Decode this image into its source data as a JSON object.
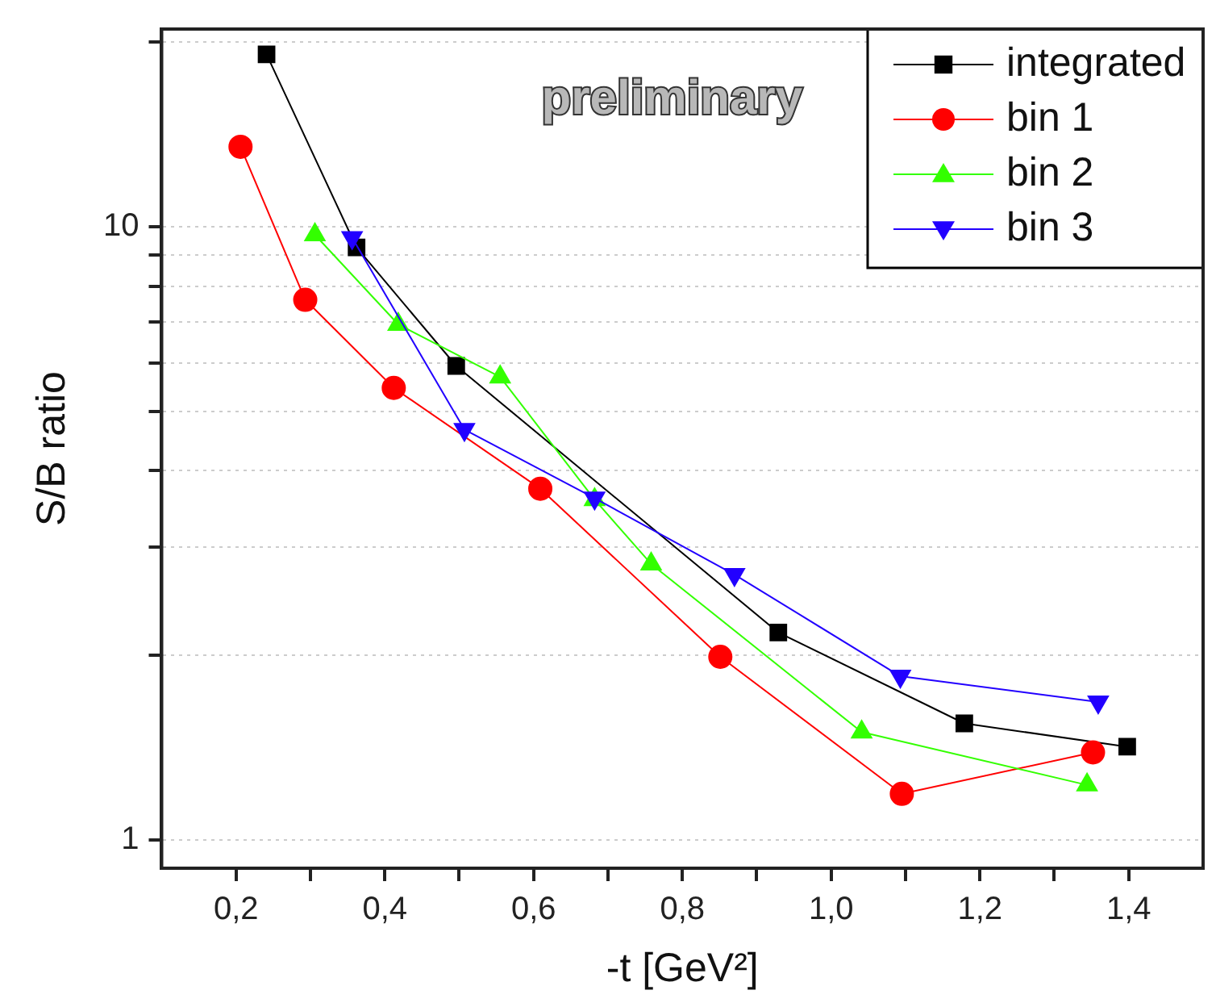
{
  "chart_data": {
    "type": "line",
    "xlabel": "-t [GeV²]",
    "ylabel": "S/B ratio",
    "annotations": [
      "preliminary"
    ],
    "log": "y",
    "grid": "y",
    "legend": "top right",
    "line_style": "solid",
    "xlim": [
      0.1,
      1.5
    ],
    "ylim": [
      0.9,
      21
    ],
    "xticks": [
      {
        "value": 0.2,
        "label": "0,2"
      },
      {
        "value": 0.3,
        "label": null
      },
      {
        "value": 0.4,
        "label": "0,4"
      },
      {
        "value": 0.5,
        "label": null
      },
      {
        "value": 0.6,
        "label": "0,6"
      },
      {
        "value": 0.7,
        "label": null
      },
      {
        "value": 0.8,
        "label": "0,8"
      },
      {
        "value": 0.9,
        "label": null
      },
      {
        "value": 1.0,
        "label": "1,0"
      },
      {
        "value": 1.1,
        "label": null
      },
      {
        "value": 1.2,
        "label": "1,2"
      },
      {
        "value": 1.3,
        "label": null
      },
      {
        "value": 1.4,
        "label": "1,4"
      }
    ],
    "yticks": [
      1,
      {
        "value": 2,
        "label": null
      },
      {
        "value": 3,
        "label": null
      },
      {
        "value": 4,
        "label": null
      },
      {
        "value": 5,
        "label": null
      },
      {
        "value": 6,
        "label": null
      },
      {
        "value": 7,
        "label": null
      },
      {
        "value": 8,
        "label": null
      },
      {
        "value": 9,
        "label": null
      },
      10,
      {
        "value": 20,
        "label": null
      }
    ],
    "series": [
      {
        "name": "integrated",
        "color": "#000000",
        "marker": "square",
        "x": [
          0.241,
          0.362,
          0.496,
          0.929,
          1.179,
          1.398
        ],
        "values": [
          19.1,
          9.25,
          5.93,
          2.18,
          1.55,
          1.42
        ]
      },
      {
        "name": "bin 1",
        "color": "#ff0000",
        "marker": "circle",
        "x": [
          0.206,
          0.293,
          0.412,
          0.609,
          0.851,
          1.095,
          1.352
        ],
        "values": [
          13.5,
          7.6,
          5.46,
          3.74,
          1.99,
          1.19,
          1.39
        ]
      },
      {
        "name": "bin 2",
        "color": "#33ff00",
        "marker": "triangle",
        "x": [
          0.306,
          0.418,
          0.555,
          0.682,
          0.758,
          1.041,
          1.344
        ],
        "values": [
          9.7,
          6.93,
          5.69,
          3.59,
          2.82,
          1.5,
          1.23
        ]
      },
      {
        "name": "bin 3",
        "color": "#2200ff",
        "marker": "triangle-down",
        "x": [
          0.356,
          0.507,
          0.682,
          0.87,
          1.093,
          1.359
        ],
        "values": [
          9.6,
          4.67,
          3.61,
          2.71,
          1.85,
          1.68
        ]
      }
    ]
  }
}
